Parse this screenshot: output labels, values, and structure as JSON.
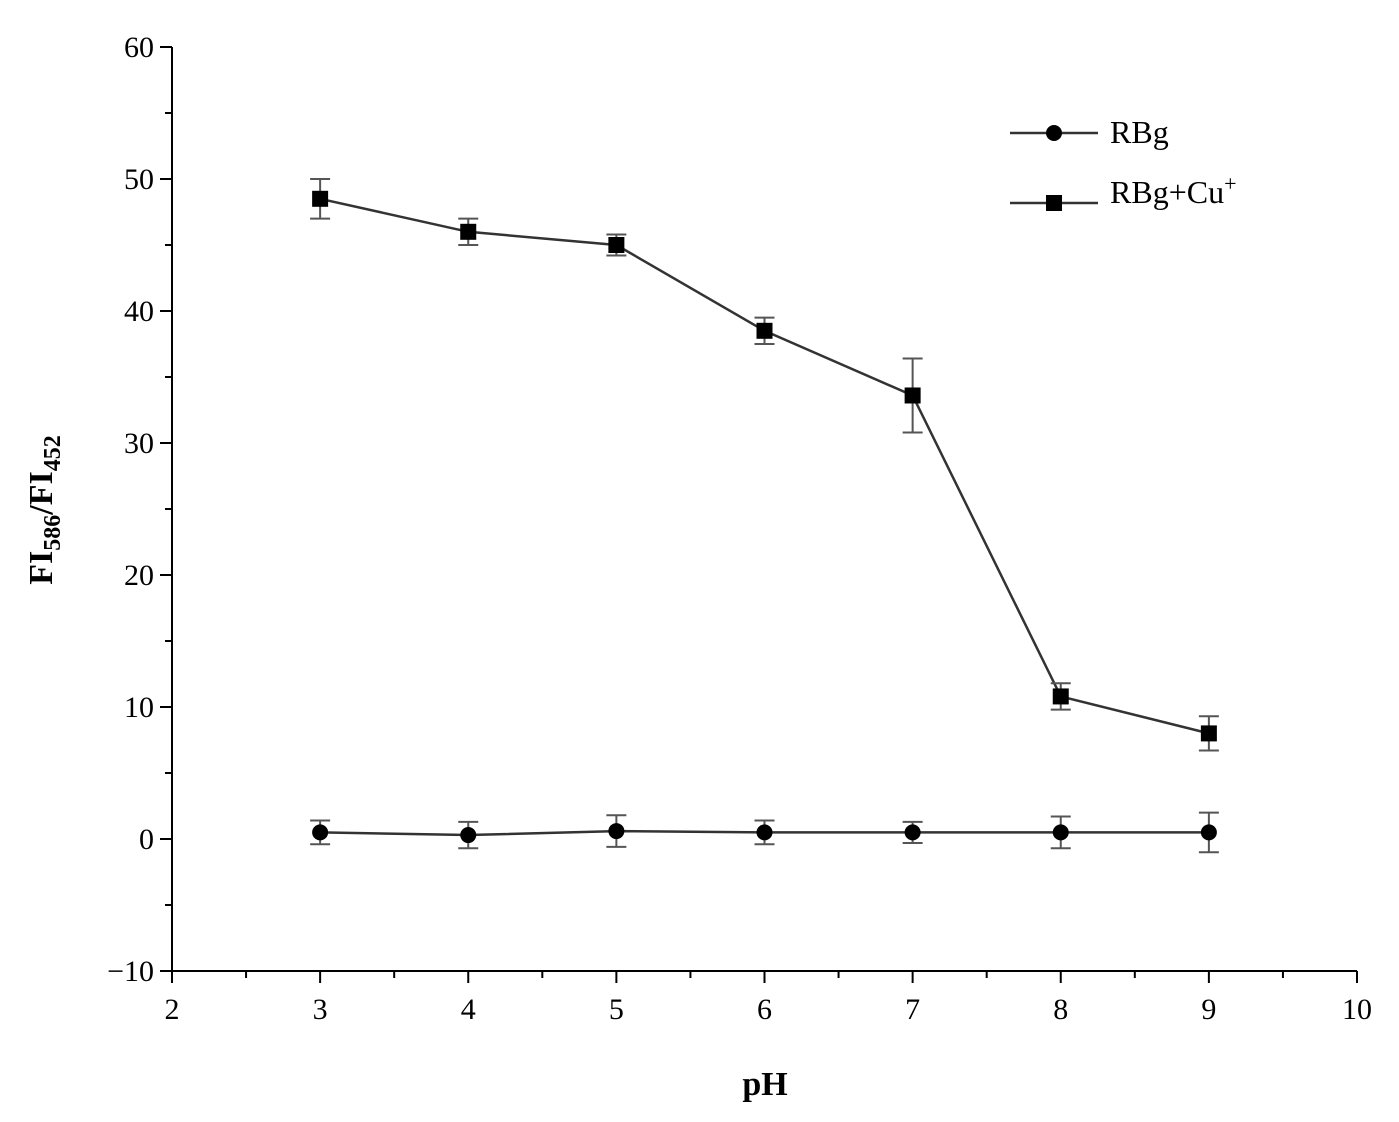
{
  "chart_data": {
    "type": "line",
    "title": "",
    "xlabel": "pH",
    "ylabel": {
      "main_1": "FI",
      "sub_1": "586",
      "sep": "/",
      "main_2": "FI",
      "sub_2": "452"
    },
    "xlim": [
      2,
      10
    ],
    "ylim": [
      -10,
      60
    ],
    "x_ticks": [
      2,
      3,
      4,
      5,
      6,
      7,
      8,
      9,
      10
    ],
    "x_tick_labels": [
      "2",
      "3",
      "4",
      "5",
      "6",
      "7",
      "8",
      "9",
      "10"
    ],
    "y_ticks": [
      -10,
      0,
      10,
      20,
      30,
      40,
      50,
      60
    ],
    "y_tick_labels": [
      "−10",
      "0",
      "10",
      "20",
      "30",
      "40",
      "50",
      "60"
    ],
    "grid": false,
    "legend_position": "top-right",
    "series": [
      {
        "name": "RBg",
        "marker": "circle",
        "x": [
          3,
          4,
          5,
          6,
          7,
          8,
          9
        ],
        "y": [
          0.5,
          0.3,
          0.6,
          0.5,
          0.5,
          0.5,
          0.5
        ],
        "error": [
          0.9,
          1.0,
          1.2,
          0.9,
          0.8,
          1.2,
          1.5
        ]
      },
      {
        "name_main": "RBg+Cu",
        "name_sup": "+",
        "marker": "square",
        "x": [
          3,
          4,
          5,
          6,
          7,
          8,
          9
        ],
        "y": [
          48.5,
          46.0,
          45.0,
          38.5,
          33.6,
          10.8,
          8.0
        ],
        "error": [
          1.5,
          1.0,
          0.8,
          1.0,
          2.8,
          1.0,
          1.3
        ]
      }
    ],
    "colors": {
      "axis": "#000000",
      "line": "#333333",
      "marker": "#000000",
      "error_bar": "#555555"
    }
  }
}
